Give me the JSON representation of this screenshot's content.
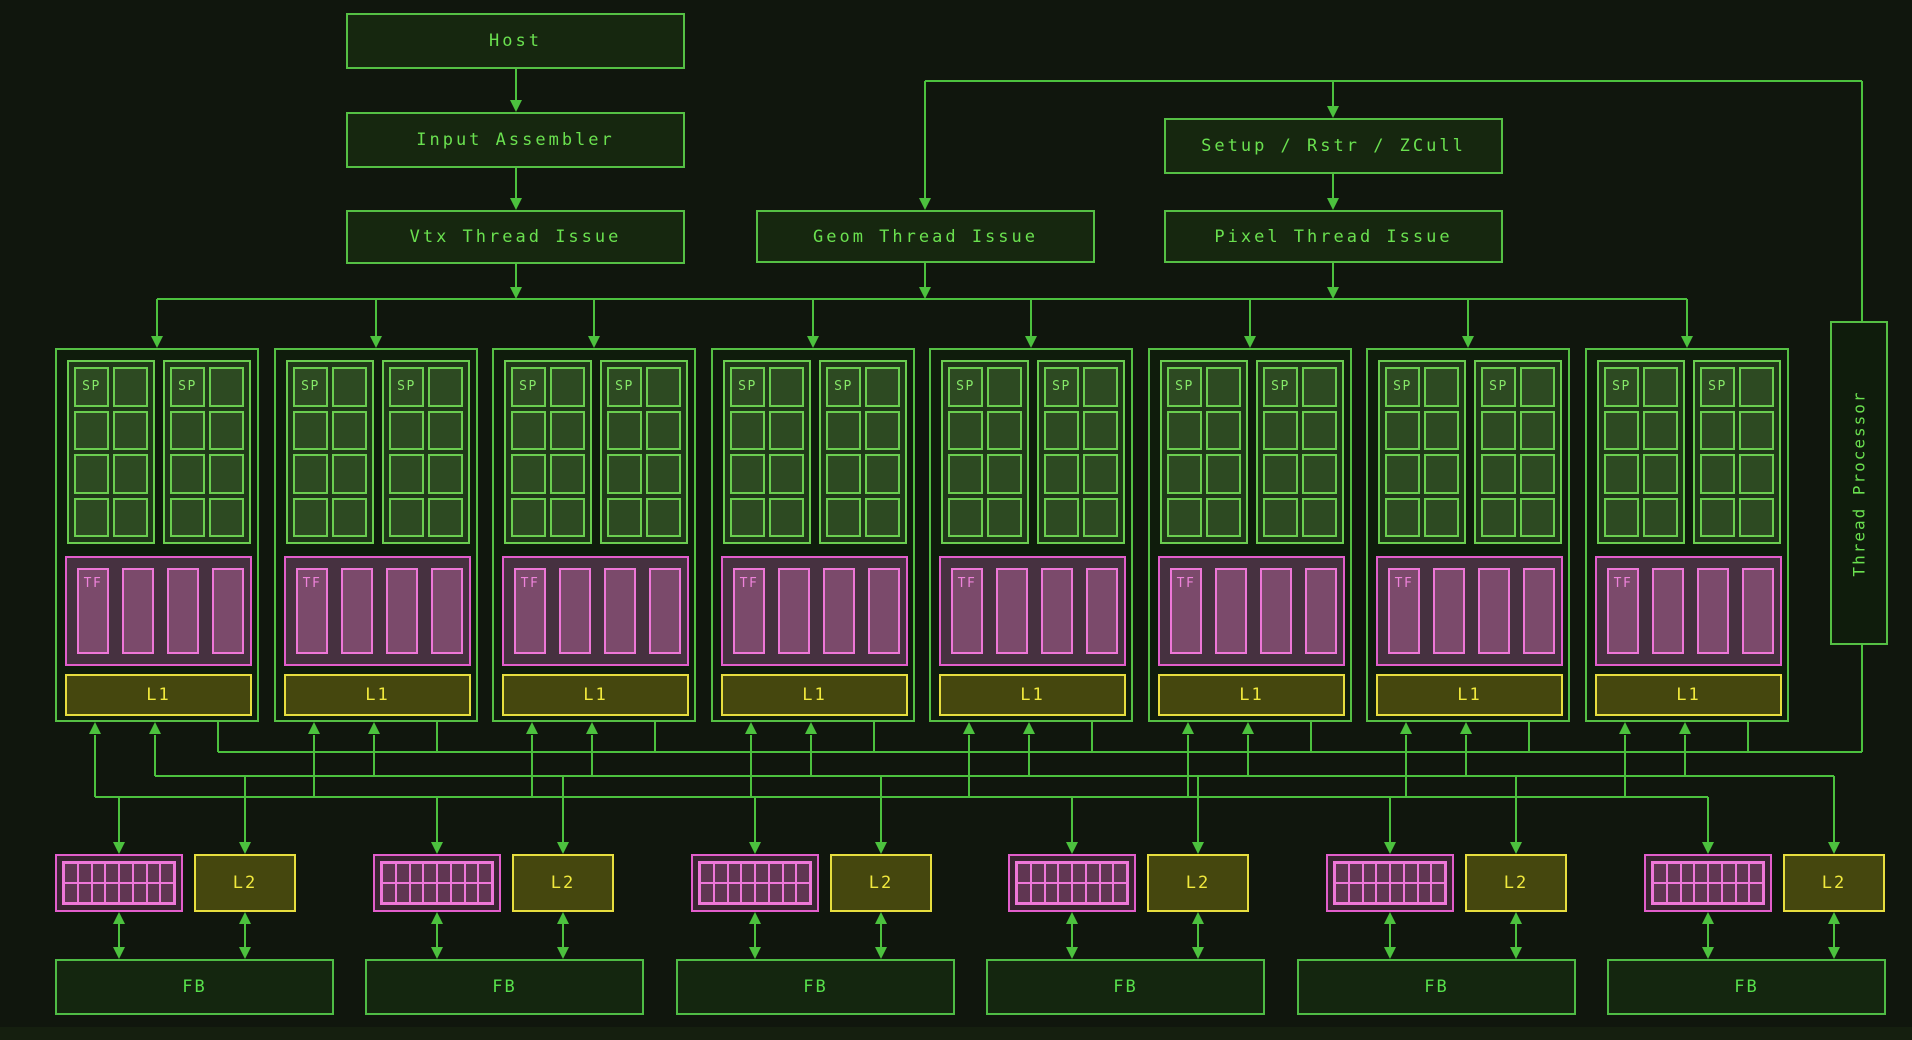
{
  "boxes": {
    "host": "Host",
    "input_assembler": "Input Assembler",
    "vtx_thread_issue": "Vtx Thread Issue",
    "geom_thread_issue": "Geom Thread Issue",
    "setup_rstr_zcull": "Setup / Rstr / ZCull",
    "pixel_thread_issue": "Pixel Thread Issue",
    "thread_processor": "Thread Processor"
  },
  "labels": {
    "sp": "SP",
    "tf": "TF",
    "l1": "L1",
    "l2": "L2",
    "fb": "FB"
  },
  "structure": {
    "cluster_count": 8,
    "sp_grids_per_cluster": 2,
    "sp_grid_columns": 2,
    "sp_grid_rows": 4,
    "tf_bars_per_cluster": 4,
    "memory_partition_count": 6,
    "rop_grid_columns": 8,
    "rop_grid_rows": 2
  },
  "colors": {
    "background": "#10160d",
    "band_fill": "#151f0f",
    "green_border": "#55c044",
    "green_text": "#6ae04f",
    "green_fill": "#16270f",
    "cluster_fill": "#0f1c0c",
    "wire": "#4cc13e",
    "sp_grid_fill": "#1f3818",
    "sp_cell_fill": "#2d4a22",
    "sp_cell_border": "#6bce50",
    "sp_text": "#86e868",
    "pink_border": "#e25ecb",
    "pink_fill": "#463140",
    "pink_bar_fill": "#7b4a6b",
    "pink_bar_border": "#ee77d8",
    "pink_text": "#ee83da",
    "rop_fill": "#3a2432",
    "rop_cell_fill": "#603652",
    "yellow_border": "#e7de3e",
    "yellow_fill": "#45470e",
    "yellow_text": "#f1e93d",
    "fb_border": "#4fbc45",
    "fb_fill": "#14260f",
    "fb_text": "#58e14c"
  }
}
